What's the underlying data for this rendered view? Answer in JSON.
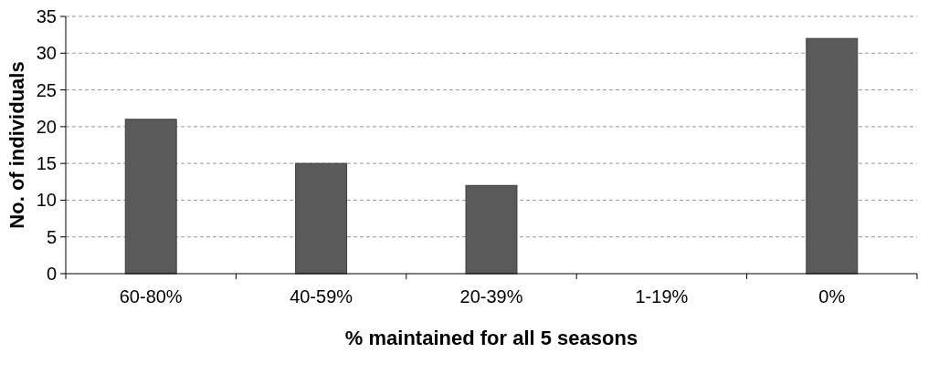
{
  "chart_data": {
    "type": "bar",
    "xlabel": "% maintained for all 5 seasons",
    "ylabel": "No. of individuals",
    "categories": [
      "60-80%",
      "40-59%",
      "20-39%",
      "1-19%",
      "0%"
    ],
    "values": [
      21,
      15,
      12,
      0,
      32
    ],
    "color": "#5a5a5a",
    "ylim": [
      0,
      35
    ],
    "yticks": [
      0,
      5,
      10,
      15,
      20,
      25,
      30,
      35
    ],
    "grid": "y"
  }
}
